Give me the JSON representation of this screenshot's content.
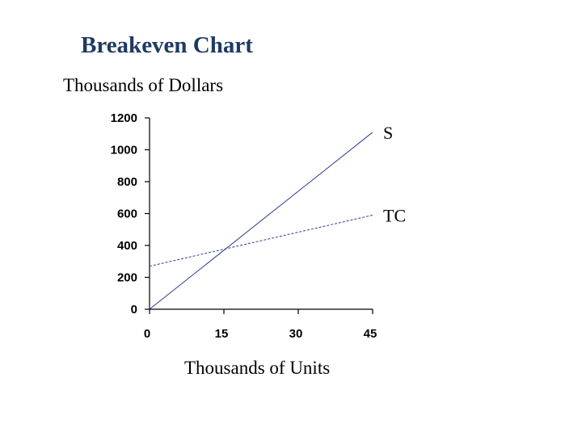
{
  "title": "Breakeven Chart",
  "ylabel": "Thousands of Dollars",
  "xlabel": "Thousands of Units",
  "chart_data": {
    "type": "line",
    "title": "Breakeven Chart",
    "xlabel": "Thousands of Units",
    "ylabel": "Thousands of Dollars",
    "xlim": [
      0,
      45
    ],
    "ylim": [
      0,
      1200
    ],
    "x_ticks": [
      0,
      15,
      30,
      45
    ],
    "y_ticks": [
      0,
      200,
      400,
      600,
      800,
      1000,
      1200
    ],
    "grid": false,
    "legend": "none",
    "series": [
      {
        "name": "S",
        "x": [
          0,
          45
        ],
        "y": [
          0,
          1110
        ],
        "color": "#2b3f8f",
        "dash": "solid"
      },
      {
        "name": "TC",
        "x": [
          0,
          45
        ],
        "y": [
          270,
          590
        ],
        "color": "#2b3f8f",
        "dash": "dashed"
      }
    ]
  }
}
